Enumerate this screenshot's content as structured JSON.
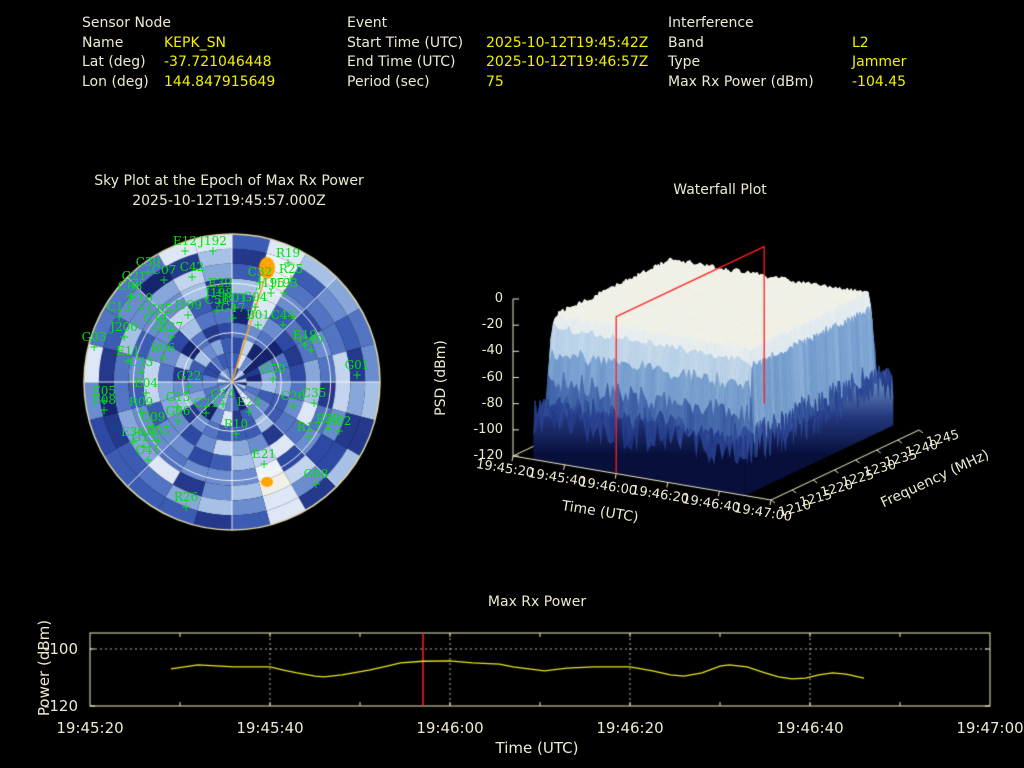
{
  "app": {
    "background": "#000000",
    "accent_yellow": "#f0f000",
    "text_cream": "#efe9d2",
    "axis_cream": "#f0ecc8",
    "satellite_green": "#00e010",
    "jammer_orange": "#ffa500",
    "epoch_red": "#ff2020"
  },
  "header": {
    "sensor_node": {
      "title": "Sensor Node",
      "rows": [
        [
          "Name",
          "KEPK_SN"
        ],
        [
          "Lat (deg)",
          "-37.721046448"
        ],
        [
          "Lon (deg)",
          "144.847915649"
        ]
      ]
    },
    "event": {
      "title": "Event",
      "rows": [
        [
          "Start Time (UTC)",
          "2025-10-12T19:45:42Z"
        ],
        [
          "End Time (UTC)",
          "2025-10-12T19:46:57Z"
        ],
        [
          "Period (sec)",
          "75"
        ]
      ]
    },
    "interference": {
      "title": "Interference",
      "rows": [
        [
          "Band",
          "L2"
        ],
        [
          "Type",
          "Jammer"
        ],
        [
          "Max Rx Power (dBm)",
          "-104.45"
        ]
      ]
    }
  },
  "chart_data": [
    {
      "id": "skyplot",
      "type": "heatmap",
      "subtype": "polar-sky-plot",
      "title": "Sky Plot at the Epoch of Max Rx Power",
      "subtitle": "2025-10-12T19:45:57.000Z",
      "grid": {
        "rings": 3,
        "spoke_step_deg": 45
      },
      "jammer_blobs": [
        {
          "x": 267,
          "y": 268,
          "rx": 8,
          "ry": 11
        },
        {
          "x": 267,
          "y": 482,
          "rx": 6,
          "ry": 5
        }
      ],
      "bearing_line_to": [
        267,
        271
      ],
      "palette_dark_to_light": [
        "#16246e",
        "#24388c",
        "#2e49a3",
        "#3c5cb4",
        "#5274c2",
        "#6b8cce",
        "#87a6da",
        "#a6c0e6",
        "#c2d4ee",
        "#dde7f6",
        "#eef3fa"
      ],
      "satellites": [
        [
          "E12",
          105,
          11
        ],
        [
          "J192",
          133,
          11
        ],
        [
          "R19",
          208,
          23
        ],
        [
          "C32",
          180,
          42
        ],
        [
          "R25",
          211,
          39
        ],
        [
          "J195",
          191,
          53
        ],
        [
          "C30",
          68,
          32
        ],
        [
          "C07",
          84,
          40
        ],
        [
          "C42",
          112,
          37
        ],
        [
          "G21",
          54,
          46
        ],
        [
          "C08",
          50,
          56
        ],
        [
          "E10",
          61,
          68
        ],
        [
          "E39",
          140,
          53
        ],
        [
          "J198",
          139,
          63
        ],
        [
          "C13",
          39,
          77
        ],
        [
          "C05",
          80,
          79
        ],
        [
          "J199",
          108,
          75
        ],
        [
          "C14",
          76,
          88
        ],
        [
          "C56",
          137,
          70
        ],
        [
          "B01",
          155,
          68
        ],
        [
          "G04",
          175,
          67
        ],
        [
          "G17",
          153,
          78
        ],
        [
          "B01",
          178,
          85
        ],
        [
          "C44",
          203,
          85
        ],
        [
          "J193",
          204,
          53
        ],
        [
          "R27",
          91,
          97
        ],
        [
          "J200",
          44,
          97
        ],
        [
          "G03",
          14,
          107
        ],
        [
          "E11",
          48,
          121
        ],
        [
          "R06",
          83,
          118
        ],
        [
          "C33",
          61,
          132
        ],
        [
          "G50",
          193,
          139
        ],
        [
          "G01",
          277,
          135
        ],
        [
          "E19",
          225,
          105
        ],
        [
          "C40",
          231,
          110
        ],
        [
          "G22",
          109,
          146
        ],
        [
          "E04",
          66,
          153
        ],
        [
          "E05",
          24,
          161
        ],
        [
          "E08",
          24,
          170
        ],
        [
          "R09",
          61,
          172
        ],
        [
          "G15",
          98,
          167
        ],
        [
          "G14",
          143,
          164
        ],
        [
          "E23",
          169,
          172
        ],
        [
          "C26",
          213,
          166
        ],
        [
          "C35",
          234,
          163
        ],
        [
          "C09",
          73,
          187
        ],
        [
          "G06",
          98,
          181
        ],
        [
          "C21",
          126,
          173
        ],
        [
          "R10",
          156,
          194
        ],
        [
          "R50",
          248,
          189
        ],
        [
          "G02",
          259,
          191
        ],
        [
          "R17",
          229,
          197
        ],
        [
          "E36",
          53,
          202
        ],
        [
          "G13",
          64,
          207
        ],
        [
          "R05",
          78,
          201
        ],
        [
          "C41",
          68,
          220
        ],
        [
          "E21",
          184,
          224
        ],
        [
          "G08",
          236,
          244
        ],
        [
          "R26",
          106,
          267
        ]
      ]
    },
    {
      "id": "waterfall",
      "type": "surface",
      "title": "Waterfall Plot",
      "zlabel": "PSD (dBm)",
      "xlabel": "Time (UTC)",
      "ylabel": "Frequency (MHz)",
      "z_ticks": [
        0,
        -20,
        -40,
        -60,
        -80,
        -100,
        -120
      ],
      "x_ticks": [
        "19:45:20",
        "19:45:40",
        "19:46:00",
        "19:46:20",
        "19:46:40",
        "19:47:00"
      ],
      "y_ticks": [
        1210,
        1215,
        1220,
        1225,
        1230,
        1235,
        1240,
        1245
      ],
      "zlim": [
        -120,
        0
      ],
      "freq_range_mhz": [
        1210,
        1245
      ],
      "plateau": {
        "freq_mhz": [
          1212,
          1242
        ],
        "psd_dbm": -14
      },
      "noise_floor_dbm": -88,
      "data_time_span_s": [
        8,
        90
      ],
      "epoch_plane_time": "19:45:57"
    },
    {
      "id": "max_rx_power",
      "type": "line",
      "title": "Max Rx Power",
      "xlabel": "Time (UTC)",
      "ylabel": "Power (dBm)",
      "x_ticks": [
        "19:45:20",
        "19:45:40",
        "19:46:00",
        "19:46:20",
        "19:46:40",
        "19:47:00"
      ],
      "y_ticks": [
        -100,
        -120
      ],
      "ylim": [
        -120,
        -94.4
      ],
      "x_range_s": 100,
      "epoch_offset_s": 37,
      "line_color": "#e8e818",
      "points_s_dbm": [
        [
          9,
          -107.0
        ],
        [
          12,
          -105.6
        ],
        [
          16,
          -106.3
        ],
        [
          20,
          -106.3
        ],
        [
          21.5,
          -107.4
        ],
        [
          23,
          -108.4
        ],
        [
          25,
          -109.5
        ],
        [
          26,
          -109.8
        ],
        [
          28,
          -109.1
        ],
        [
          31,
          -107.4
        ],
        [
          33,
          -106.0
        ],
        [
          34.5,
          -104.9
        ],
        [
          37,
          -104.3
        ],
        [
          40,
          -104.2
        ],
        [
          42.5,
          -104.9
        ],
        [
          45.5,
          -105.3
        ],
        [
          47,
          -106.3
        ],
        [
          50.5,
          -107.7
        ],
        [
          53,
          -106.7
        ],
        [
          56,
          -106.3
        ],
        [
          60,
          -106.3
        ],
        [
          62.5,
          -107.7
        ],
        [
          64.5,
          -109.1
        ],
        [
          66,
          -109.5
        ],
        [
          68,
          -108.4
        ],
        [
          70,
          -106.0
        ],
        [
          71,
          -105.6
        ],
        [
          73,
          -106.3
        ],
        [
          75,
          -108.4
        ],
        [
          76.5,
          -109.8
        ],
        [
          78,
          -110.5
        ],
        [
          79.5,
          -110.2
        ],
        [
          81,
          -109.1
        ],
        [
          82.5,
          -108.4
        ],
        [
          84,
          -108.8
        ],
        [
          85,
          -109.5
        ],
        [
          86,
          -110.2
        ]
      ]
    }
  ]
}
